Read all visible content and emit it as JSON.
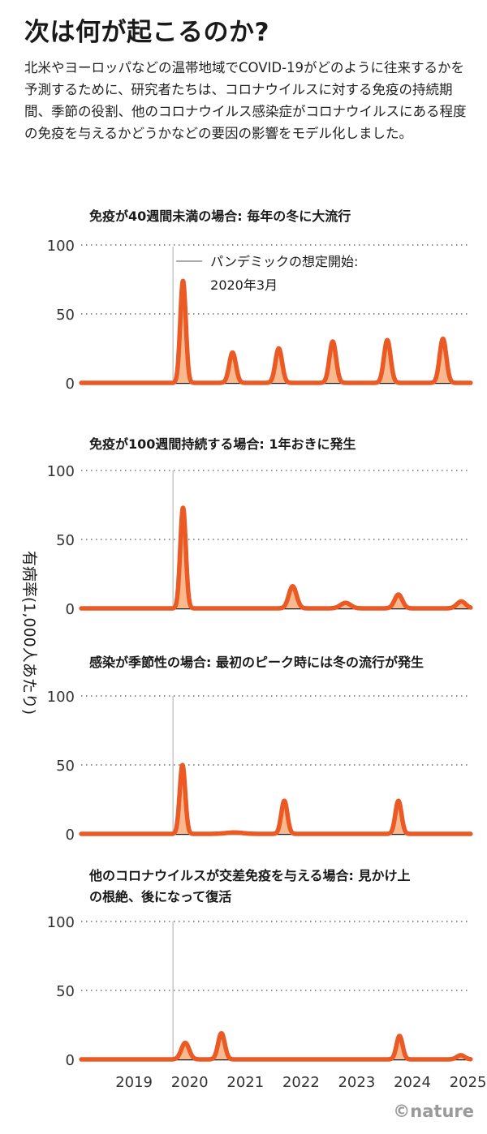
{
  "title": "次は何が起こるのか?",
  "intro": "北米やヨーロッパなどの温帯地域でCOVID-19がどのように往来するかを予測するために、研究者たちは、コロナウイルスに対する免疫の持続期間、季節の役割、他のコロナウイルス感染症がコロナウイルスにある程度の免疫を与えるかどうかなどの要因の影響をモデル化しました。",
  "credit": "©nature",
  "colors": {
    "line": "#eb5a24",
    "fill": "#f9b98f",
    "text": "#1a1a1a",
    "start_line": "#c8c8c8"
  },
  "chart_data": {
    "type": "area",
    "ylabel": "有病率(1,000人あたり)",
    "ylim": [
      0,
      100
    ],
    "yticks": [
      "0",
      "50",
      "100"
    ],
    "xlim": [
      2018.55,
      2025.55
    ],
    "xticks": [
      "2019",
      "2020",
      "2021",
      "2022",
      "2023",
      "2024",
      "2025"
    ],
    "grid": true,
    "pandemic_start": 2020.2,
    "annotation": {
      "lines": [
        "パンデミックの想定開始:",
        "2020年3月"
      ]
    },
    "panels": [
      {
        "title": [
          "免疫が40週間未満の場合: 毎年の冬に大流行"
        ],
        "peaks": [
          {
            "x": 2020.38,
            "y": 74,
            "w": 0.05
          },
          {
            "x": 2021.27,
            "y": 22,
            "w": 0.06
          },
          {
            "x": 2022.1,
            "y": 25,
            "w": 0.06
          },
          {
            "x": 2023.07,
            "y": 30,
            "w": 0.06
          },
          {
            "x": 2024.05,
            "y": 31,
            "w": 0.06
          },
          {
            "x": 2025.05,
            "y": 32,
            "w": 0.06
          }
        ]
      },
      {
        "title": [
          "免疫が100週間持続する場合: 1年おきに発生"
        ],
        "peaks": [
          {
            "x": 2020.38,
            "y": 73,
            "w": 0.05
          },
          {
            "x": 2022.35,
            "y": 16,
            "w": 0.07
          },
          {
            "x": 2023.3,
            "y": 4,
            "w": 0.09
          },
          {
            "x": 2024.25,
            "y": 10,
            "w": 0.07
          },
          {
            "x": 2025.38,
            "y": 5,
            "w": 0.08
          }
        ]
      },
      {
        "title": [
          "感染が季節性の場合: 最初のピーク時には冬の流行が発生"
        ],
        "peaks": [
          {
            "x": 2020.37,
            "y": 50,
            "w": 0.05
          },
          {
            "x": 2021.3,
            "y": 1,
            "w": 0.15
          },
          {
            "x": 2022.2,
            "y": 24,
            "w": 0.055
          },
          {
            "x": 2024.25,
            "y": 24,
            "w": 0.055
          }
        ]
      },
      {
        "title": [
          "他のコロナウイルスが交差免疫を与える場合: 見かけ上",
          "の根絶、後になって復活"
        ],
        "peaks": [
          {
            "x": 2020.42,
            "y": 12,
            "w": 0.07
          },
          {
            "x": 2021.07,
            "y": 19,
            "w": 0.06
          },
          {
            "x": 2024.27,
            "y": 17,
            "w": 0.055
          },
          {
            "x": 2025.37,
            "y": 3,
            "w": 0.07
          }
        ]
      }
    ]
  }
}
